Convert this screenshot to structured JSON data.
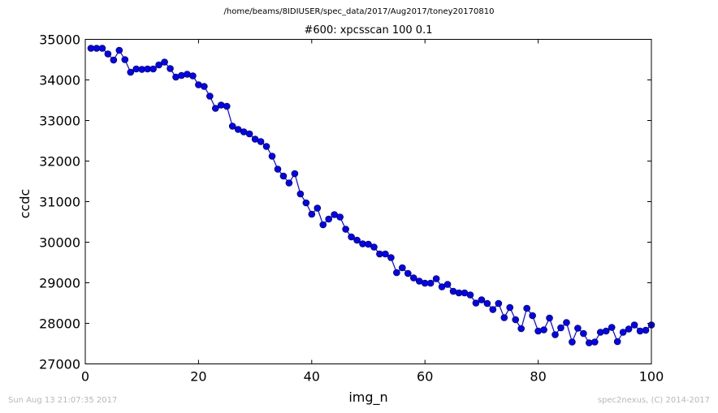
{
  "figure": {
    "suptitle": "/home/beams/8IDIUSER/spec_data/2017/Aug2017/toney20170810",
    "footer_left": "Sun Aug 13 21:07:35 2017",
    "footer_right": "spec2nexus, (C) 2014-2017"
  },
  "colors": {
    "series": "#0000ff",
    "axes": "#000000",
    "footer": "#b8b8b8"
  },
  "chart_data": {
    "type": "line",
    "title": "#600: xpcsscan 100 0.1",
    "xlabel": "img_n",
    "ylabel": "ccdc",
    "xlim": [
      0,
      100
    ],
    "ylim": [
      27000,
      35000
    ],
    "xticks": [
      0,
      20,
      40,
      60,
      80,
      100
    ],
    "yticks": [
      27000,
      28000,
      29000,
      30000,
      31000,
      32000,
      33000,
      34000,
      35000
    ],
    "grid": false,
    "legend": "none",
    "marker": "circle",
    "series": [
      {
        "x": [
          1,
          2,
          3,
          4,
          5,
          6,
          7,
          8,
          9,
          10,
          11,
          12,
          13,
          14,
          15,
          16,
          17,
          18,
          19,
          20,
          21,
          22,
          23,
          24,
          25,
          26,
          27,
          28,
          29,
          30,
          31,
          32,
          33,
          34,
          35,
          36,
          37,
          38,
          39,
          40,
          41,
          42,
          43,
          44,
          45,
          46,
          47,
          48,
          49,
          50,
          51,
          52,
          53,
          54,
          55,
          56,
          57,
          58,
          59,
          60,
          61,
          62,
          63,
          64,
          65,
          66,
          67,
          68,
          69,
          70,
          71,
          72,
          73,
          74,
          75,
          76,
          77,
          78,
          79,
          80,
          81,
          82,
          83,
          84,
          85,
          86,
          87,
          88,
          89,
          90,
          91,
          92,
          93,
          94,
          95,
          96,
          97,
          98,
          99,
          100
        ],
        "y": [
          34780,
          34780,
          34780,
          34640,
          34490,
          34730,
          34500,
          34190,
          34270,
          34260,
          34270,
          34270,
          34370,
          34440,
          34280,
          34070,
          34110,
          34140,
          34100,
          33880,
          33840,
          33600,
          33300,
          33380,
          33350,
          32860,
          32780,
          32720,
          32670,
          32540,
          32480,
          32360,
          32120,
          31800,
          31630,
          31460,
          31690,
          31190,
          30970,
          30690,
          30840,
          30430,
          30570,
          30680,
          30620,
          30320,
          30130,
          30050,
          29960,
          29950,
          29880,
          29710,
          29710,
          29620,
          29250,
          29370,
          29230,
          29120,
          29040,
          28990,
          28990,
          29100,
          28900,
          28960,
          28790,
          28750,
          28750,
          28700,
          28500,
          28580,
          28490,
          28340,
          28490,
          28140,
          28390,
          28090,
          27870,
          28370,
          28190,
          27810,
          27840,
          28130,
          27720,
          27890,
          28020,
          27540,
          27880,
          27750,
          27520,
          27540,
          27780,
          27810,
          27900,
          27550,
          27780,
          27860,
          27960,
          27810,
          27830,
          27960
        ]
      }
    ]
  }
}
